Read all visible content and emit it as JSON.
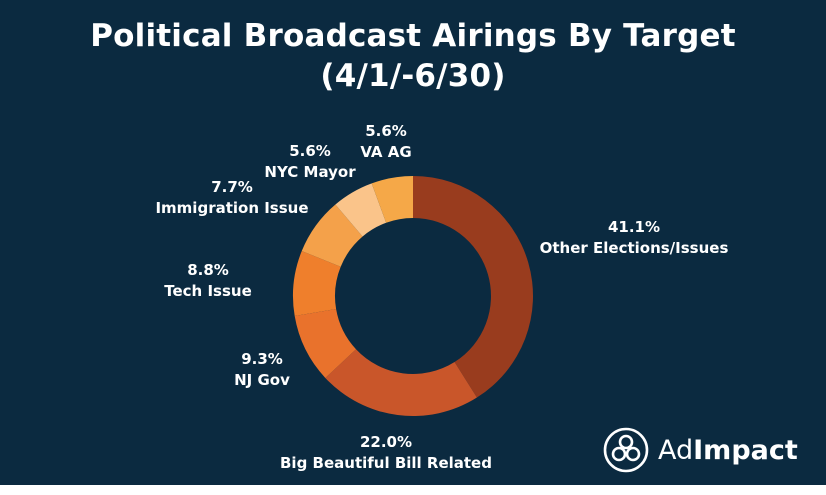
{
  "colors": {
    "background": "#0b2a40",
    "text": "#ffffff",
    "slices": [
      "#993c1e",
      "#c9562a",
      "#e9722c",
      "#ef7f2c",
      "#f4a14a",
      "#fac48a",
      "#f5a848"
    ]
  },
  "chart_data": {
    "type": "pie",
    "style": "donut",
    "title": "Political Broadcast Airings By Target",
    "subtitle": "(4/1/-6/30)",
    "unit": "%",
    "slices": [
      {
        "label": "Other Elections/Issues",
        "value": 41.1,
        "display": "41.1%"
      },
      {
        "label": "Big Beautiful Bill Related",
        "value": 22.0,
        "display": "22.0%"
      },
      {
        "label": "NJ Gov",
        "value": 9.3,
        "display": "9.3%"
      },
      {
        "label": "Tech Issue",
        "value": 8.8,
        "display": "8.8%"
      },
      {
        "label": "Immigration Issue",
        "value": 7.7,
        "display": "7.7%"
      },
      {
        "label": "NYC Mayor",
        "value": 5.6,
        "display": "5.6%"
      },
      {
        "label": "VA AG",
        "value": 5.6,
        "display": "5.6%"
      }
    ],
    "legend": "none"
  },
  "logo": {
    "icon": "adimpact-logo-icon",
    "text_part1": "Ad",
    "text_part2": "Impact"
  }
}
